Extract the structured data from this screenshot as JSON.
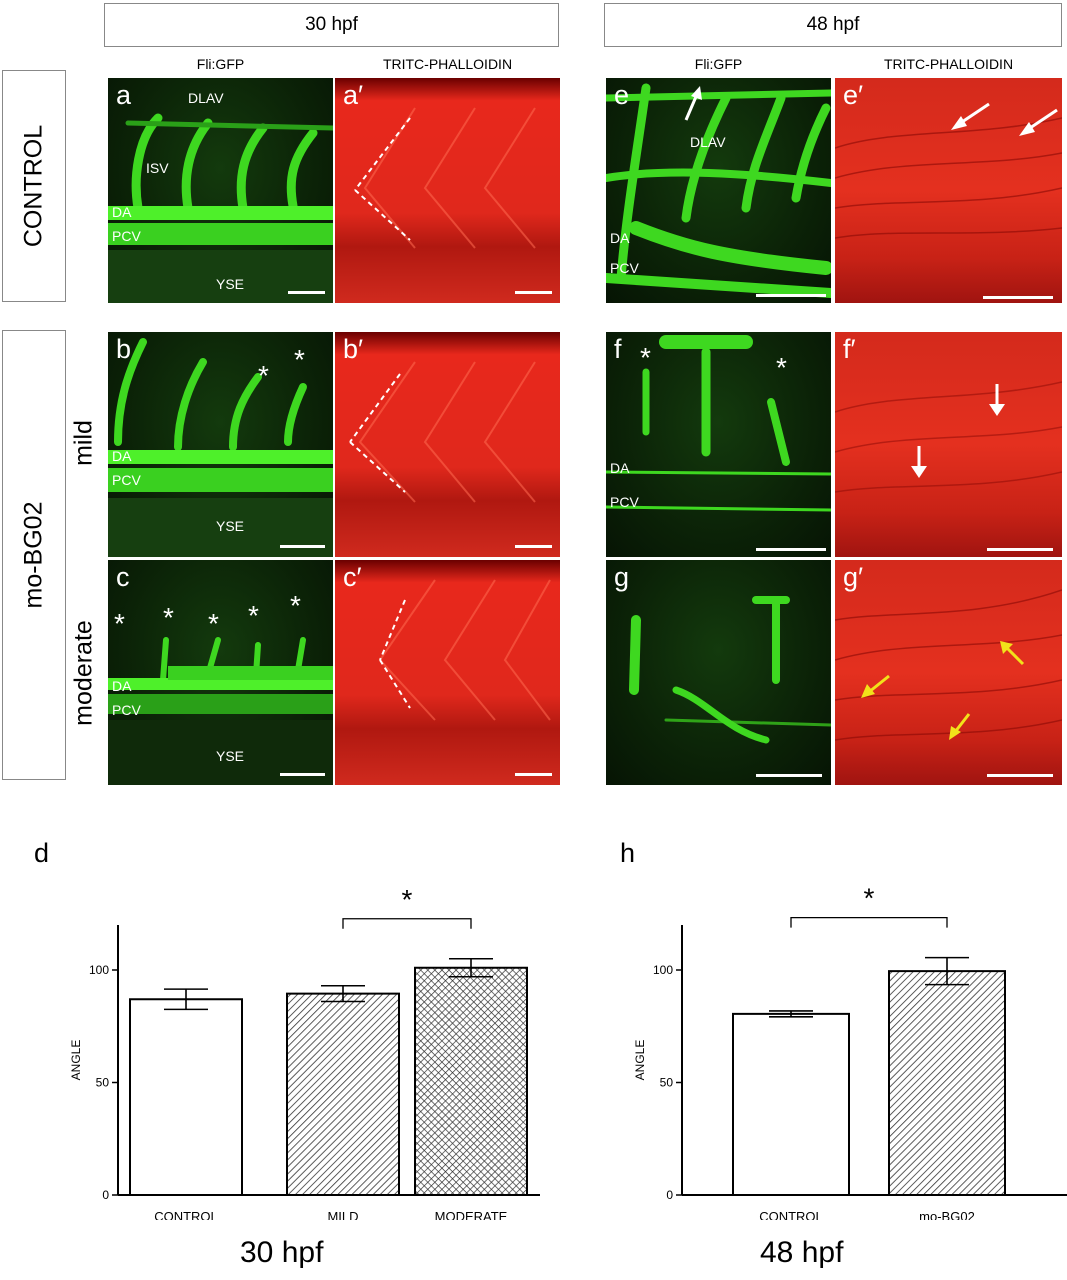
{
  "headers": {
    "left": "30 hpf",
    "right": "48 hpf"
  },
  "rows": {
    "control": "CONTROL",
    "morphant": "mo-BG02",
    "mild": "mild",
    "moderate": "moderate"
  },
  "columns": {
    "fli_left": "Fli:GFP",
    "phal_left": "TRITC-PHALLOIDIN",
    "fli_right": "Fli:GFP",
    "phal_right": "TRITC-PHALLOIDIN"
  },
  "panels": {
    "a": {
      "letter": "a",
      "dlav": "DLAV",
      "isv": "ISV",
      "da": "DA",
      "pcv": "PCV",
      "yse": "YSE"
    },
    "a2": {
      "letter": "a′"
    },
    "b": {
      "letter": "b",
      "da": "DA",
      "pcv": "PCV",
      "yse": "YSE"
    },
    "b2": {
      "letter": "b′"
    },
    "c": {
      "letter": "c",
      "da": "DA",
      "pcv": "PCV",
      "yse": "YSE"
    },
    "c2": {
      "letter": "c′"
    },
    "e": {
      "letter": "e",
      "dlav": "DLAV",
      "da": "DA",
      "pcv": "PCV"
    },
    "e2": {
      "letter": "e′"
    },
    "f": {
      "letter": "f",
      "da": "DA",
      "pcv": "PCV"
    },
    "f2": {
      "letter": "f′"
    },
    "g": {
      "letter": "g"
    },
    "g2": {
      "letter": "g′"
    }
  },
  "asterisk": "*",
  "chart_data": [
    {
      "panel": "d",
      "type": "bar",
      "categories": [
        "CONTROL",
        "MILD",
        "MODERATE"
      ],
      "values": [
        87,
        89.5,
        101
      ],
      "errors": [
        4.5,
        3.5,
        4
      ],
      "patterns": [
        "none",
        "hatched",
        "crosshatched"
      ],
      "ylabel": "ANGLE",
      "ylim": [
        0,
        120
      ],
      "yticks": [
        0,
        50,
        100
      ],
      "significance": {
        "between": [
          "MILD",
          "MODERATE"
        ],
        "label": "*"
      },
      "caption": "30 hpf"
    },
    {
      "panel": "h",
      "type": "bar",
      "categories": [
        "CONTROL",
        "mo-BG02"
      ],
      "values": [
        80.5,
        99.5
      ],
      "errors": [
        1.3,
        6
      ],
      "patterns": [
        "none",
        "hatched"
      ],
      "ylabel": "ANGLE",
      "ylim": [
        0,
        120
      ],
      "yticks": [
        0,
        50,
        100
      ],
      "significance": {
        "between": [
          "CONTROL",
          "mo-BG02"
        ],
        "label": "*"
      },
      "caption": "48 hpf"
    }
  ]
}
